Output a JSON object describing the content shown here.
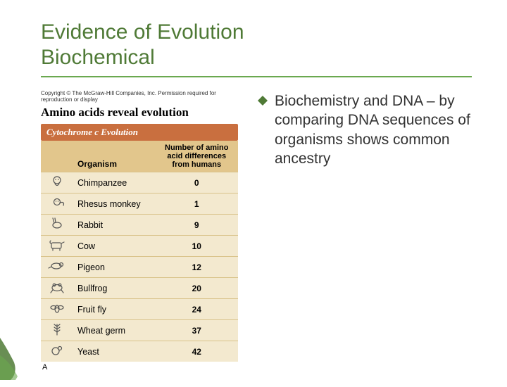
{
  "colors": {
    "title": "#4f7a36",
    "rule": "#6aa84f",
    "bullet_marker": "#4f7a36",
    "body_text": "#333333",
    "fig_headline_text": "#000000",
    "fig_banner_bg": "#c96f3f",
    "fig_banner_text": "#ffffff",
    "fig_header_bg": "#e2c68c",
    "fig_row_bg": "#f3e9cf",
    "fig_row_border": "#d9c38a",
    "fig_text": "#000000",
    "icon_stroke": "#555555",
    "corner_leaf": "#4f7a36"
  },
  "title_line1": "Evidence of Evolution",
  "title_line2": "Biochemical",
  "title_fontsize": 30,
  "body_fontsize": 21,
  "bullet_text": "Biochemistry and DNA – by comparing DNA sequences of organisms shows common ancestry",
  "figure": {
    "copyright": "Copyright © The McGraw-Hill Companies, Inc. Permission required for reproduction or display",
    "headline": "Amino acids reveal evolution",
    "banner": "Cytochrome c Evolution",
    "col_organism": "Organism",
    "col_value_l1": "Number of amino",
    "col_value_l2": "acid differences",
    "col_value_l3": "from humans",
    "panel_label": "A",
    "rows": [
      {
        "icon": "chimp",
        "organism": "Chimpanzee",
        "value": "0"
      },
      {
        "icon": "monkey",
        "organism": "Rhesus monkey",
        "value": "1"
      },
      {
        "icon": "rabbit",
        "organism": "Rabbit",
        "value": "9"
      },
      {
        "icon": "cow",
        "organism": "Cow",
        "value": "10"
      },
      {
        "icon": "pigeon",
        "organism": "Pigeon",
        "value": "12"
      },
      {
        "icon": "frog",
        "organism": "Bullfrog",
        "value": "20"
      },
      {
        "icon": "fly",
        "organism": "Fruit fly",
        "value": "24"
      },
      {
        "icon": "wheat",
        "organism": "Wheat germ",
        "value": "37"
      },
      {
        "icon": "yeast",
        "organism": "Yeast",
        "value": "42"
      }
    ]
  }
}
